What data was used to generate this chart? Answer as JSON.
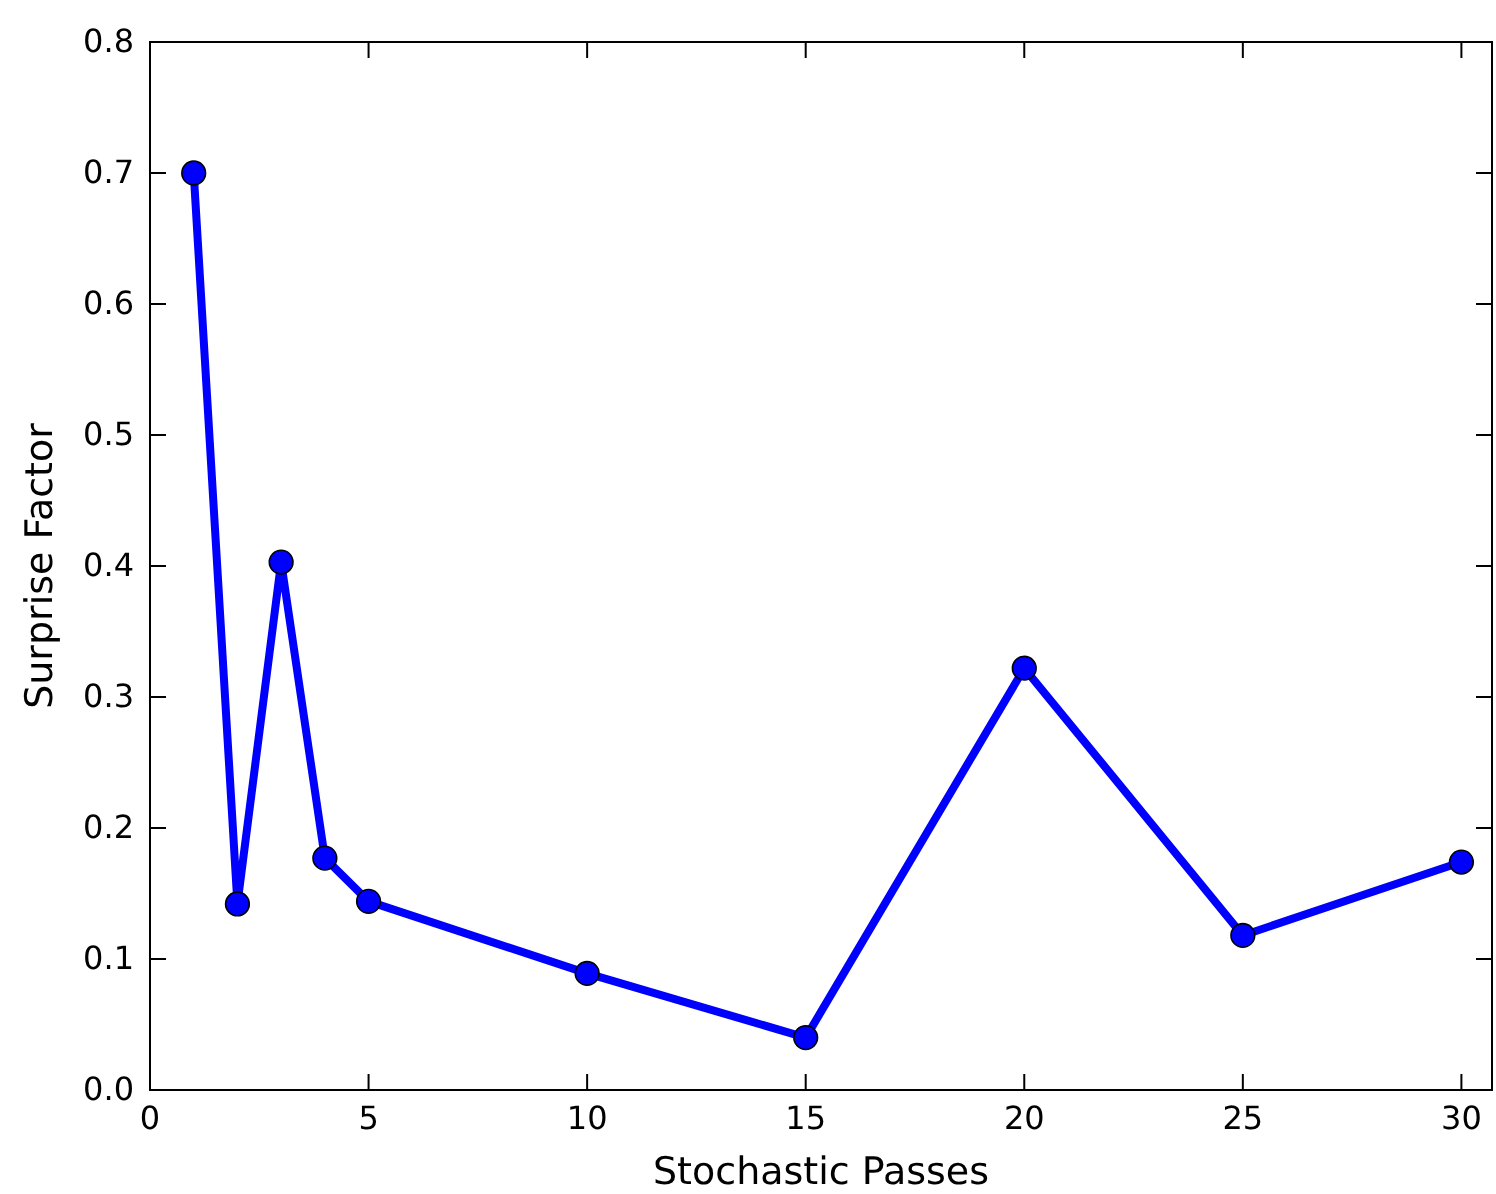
{
  "chart_data": {
    "type": "line",
    "xlabel": "Stochastic Passes",
    "ylabel": "Surprise Factor",
    "x": [
      1,
      2,
      3,
      4,
      5,
      10,
      15,
      20,
      25,
      30
    ],
    "series": [
      {
        "color": "#0000ff",
        "values": [
          0.7,
          0.142,
          0.403,
          0.177,
          0.144,
          0.089,
          0.04,
          0.322,
          0.118,
          0.174
        ]
      }
    ],
    "xlim": [
      0,
      30.7
    ],
    "xticks": [
      0,
      5,
      10,
      15,
      20,
      25,
      30
    ],
    "ylim": [
      0,
      0.8
    ],
    "yticks": [
      {
        "value": 0,
        "label": "0.0"
      },
      0.1,
      0.2,
      0.3,
      0.4,
      0.5,
      0.6,
      0.7,
      0.8
    ],
    "marker": "circle",
    "line_style": "solid",
    "grid": false
  }
}
